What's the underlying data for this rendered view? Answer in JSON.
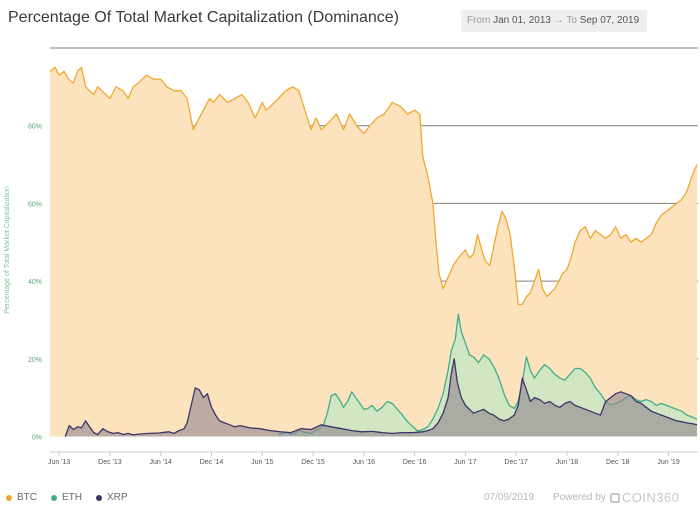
{
  "title": "Percentage Of Total Market Capitalization (Dominance)",
  "range": {
    "from_label": "From",
    "from_value": "Jan 01, 2013",
    "separator": "→",
    "to_label": "To",
    "to_value": "Sep 07, 2019"
  },
  "footer": {
    "date": "07/09/2019",
    "powered_by": "Powered by",
    "brand": "COIN360"
  },
  "chart_data": {
    "type": "area",
    "title": "Percentage Of Total Market Capitalization (Dominance)",
    "ylabel": "Percentage of Total Market Capitalization",
    "xlabel": "",
    "ylim": [
      -4,
      100
    ],
    "yticks": [
      0,
      20,
      40,
      60,
      80
    ],
    "ytick_labels": [
      "0%",
      "20%",
      "40%",
      "60%",
      "80%"
    ],
    "xlim": [
      2013.33,
      2019.71
    ],
    "xticks": [
      2013.42,
      2013.92,
      2014.42,
      2014.92,
      2015.42,
      2015.92,
      2016.42,
      2016.92,
      2017.42,
      2017.92,
      2018.42,
      2018.92,
      2019.42
    ],
    "xtick_labels": [
      "Jun '13",
      "Dec '13",
      "Jun '14",
      "Dec '14",
      "Jun '15",
      "Dec '15",
      "Jun '16",
      "Dec '16",
      "Jun '17",
      "Dec '17",
      "Jun '18",
      "Dec '18",
      "Jun '19"
    ],
    "grid": true,
    "legend_position": "bottom-left",
    "colors": {
      "BTC": "#f0a830",
      "ETH": "#3fae8a",
      "XRP": "#3b3566"
    },
    "series": [
      {
        "name": "BTC",
        "x": [
          2013.33,
          2013.38,
          2013.42,
          2013.47,
          2013.51,
          2013.56,
          2013.6,
          2013.64,
          2013.68,
          2013.72,
          2013.76,
          2013.8,
          2013.84,
          2013.88,
          2013.92,
          2013.98,
          2014.05,
          2014.1,
          2014.15,
          2014.2,
          2014.28,
          2014.35,
          2014.42,
          2014.48,
          2014.55,
          2014.62,
          2014.68,
          2014.74,
          2014.8,
          2014.86,
          2014.9,
          2014.94,
          2015.0,
          2015.08,
          2015.15,
          2015.22,
          2015.28,
          2015.35,
          2015.42,
          2015.46,
          2015.5,
          2015.58,
          2015.65,
          2015.72,
          2015.78,
          2015.84,
          2015.9,
          2015.95,
          2016.0,
          2016.08,
          2016.15,
          2016.22,
          2016.28,
          2016.35,
          2016.42,
          2016.48,
          2016.55,
          2016.62,
          2016.7,
          2016.78,
          2016.85,
          2016.92,
          2016.97,
          2017.0,
          2017.05,
          2017.1,
          2017.13,
          2017.16,
          2017.2,
          2017.25,
          2017.3,
          2017.35,
          2017.42,
          2017.46,
          2017.5,
          2017.54,
          2017.58,
          2017.62,
          2017.66,
          2017.7,
          2017.74,
          2017.78,
          2017.82,
          2017.86,
          2017.9,
          2017.94,
          2017.98,
          2018.02,
          2018.06,
          2018.1,
          2018.14,
          2018.18,
          2018.22,
          2018.26,
          2018.3,
          2018.34,
          2018.38,
          2018.42,
          2018.46,
          2018.5,
          2018.55,
          2018.6,
          2018.65,
          2018.7,
          2018.75,
          2018.8,
          2018.85,
          2018.9,
          2018.95,
          2019.0,
          2019.05,
          2019.1,
          2019.15,
          2019.2,
          2019.25,
          2019.3,
          2019.35,
          2019.4,
          2019.45,
          2019.5,
          2019.55,
          2019.6,
          2019.65,
          2019.7
        ],
        "values": [
          94,
          95,
          93,
          94,
          92,
          91,
          94,
          95,
          90,
          89,
          88,
          90,
          89,
          88,
          87,
          90,
          89,
          87,
          90,
          91,
          93,
          92,
          92,
          90,
          89,
          89,
          87,
          79,
          82,
          85,
          87,
          86,
          88,
          86,
          87,
          88,
          86,
          82,
          86,
          84,
          85,
          87,
          89,
          90,
          89,
          84,
          79,
          82,
          79,
          81,
          83,
          79,
          83,
          80,
          78,
          80,
          82,
          83,
          86,
          85,
          83,
          84,
          83,
          72,
          67,
          60,
          50,
          42,
          38,
          41,
          44,
          46,
          48,
          46,
          47,
          52,
          48,
          45,
          44,
          49,
          54,
          58,
          56,
          52,
          44,
          34,
          34,
          36,
          37,
          40,
          43,
          38,
          36,
          37,
          38,
          40,
          42,
          43,
          46,
          50,
          53,
          54,
          51,
          53,
          52,
          51,
          52,
          54,
          51,
          52,
          50,
          51,
          50,
          51,
          52,
          55,
          57,
          58,
          59,
          60,
          61,
          63,
          67,
          70
        ]
      },
      {
        "name": "ETH",
        "x": [
          2015.58,
          2015.62,
          2015.66,
          2015.7,
          2015.74,
          2015.78,
          2015.82,
          2015.86,
          2015.9,
          2015.94,
          2015.98,
          2016.02,
          2016.06,
          2016.1,
          2016.14,
          2016.18,
          2016.22,
          2016.26,
          2016.3,
          2016.34,
          2016.38,
          2016.42,
          2016.46,
          2016.5,
          2016.55,
          2016.6,
          2016.65,
          2016.7,
          2016.75,
          2016.8,
          2016.85,
          2016.9,
          2016.95,
          2017.0,
          2017.05,
          2017.1,
          2017.15,
          2017.2,
          2017.25,
          2017.28,
          2017.32,
          2017.35,
          2017.38,
          2017.42,
          2017.46,
          2017.5,
          2017.55,
          2017.6,
          2017.65,
          2017.7,
          2017.75,
          2017.8,
          2017.85,
          2017.9,
          2017.94,
          2017.98,
          2018.02,
          2018.06,
          2018.1,
          2018.15,
          2018.2,
          2018.25,
          2018.3,
          2018.35,
          2018.4,
          2018.45,
          2018.5,
          2018.55,
          2018.6,
          2018.65,
          2018.7,
          2018.75,
          2018.8,
          2018.85,
          2018.9,
          2018.95,
          2019.0,
          2019.05,
          2019.1,
          2019.15,
          2019.2,
          2019.25,
          2019.3,
          2019.35,
          2019.4,
          2019.45,
          2019.5,
          2019.55,
          2019.6,
          2019.65,
          2019.7
        ],
        "values": [
          0.4,
          0.8,
          1.1,
          0.5,
          0.8,
          1.6,
          1.2,
          1.0,
          0.8,
          1.5,
          2.0,
          2.8,
          6.0,
          10.5,
          11.0,
          9.5,
          7.5,
          9.0,
          11.5,
          10.0,
          8.5,
          7.0,
          7.2,
          8.0,
          6.5,
          7.5,
          9.0,
          8.5,
          7.0,
          5.5,
          3.8,
          2.6,
          1.4,
          1.8,
          2.5,
          4.5,
          7.2,
          11.0,
          17.0,
          22.0,
          25.0,
          31.5,
          27.0,
          24.0,
          21.0,
          20.5,
          19.0,
          21.0,
          20.0,
          18.0,
          15.0,
          11.0,
          8.0,
          7.2,
          9.0,
          14.0,
          20.5,
          17.0,
          15.0,
          17.0,
          18.5,
          17.5,
          16.0,
          15.0,
          14.5,
          16.0,
          17.5,
          17.5,
          16.5,
          15.0,
          12.5,
          11.0,
          9.0,
          8.0,
          8.5,
          9.0,
          10.0,
          10.5,
          9.5,
          9.0,
          9.5,
          9.0,
          8.0,
          8.5,
          8.0,
          7.5,
          7.0,
          6.5,
          5.5,
          5.0,
          4.5
        ]
      },
      {
        "name": "XRP",
        "x": [
          2013.48,
          2013.52,
          2013.56,
          2013.6,
          2013.64,
          2013.68,
          2013.72,
          2013.76,
          2013.8,
          2013.85,
          2013.9,
          2013.95,
          2014.0,
          2014.05,
          2014.1,
          2014.15,
          2014.2,
          2014.3,
          2014.4,
          2014.5,
          2014.55,
          2014.6,
          2014.65,
          2014.68,
          2014.72,
          2014.76,
          2014.8,
          2014.84,
          2014.88,
          2014.92,
          2014.96,
          2015.0,
          2015.05,
          2015.1,
          2015.15,
          2015.2,
          2015.3,
          2015.4,
          2015.5,
          2015.6,
          2015.7,
          2015.8,
          2015.9,
          2016.0,
          2016.1,
          2016.2,
          2016.3,
          2016.4,
          2016.5,
          2016.6,
          2016.7,
          2016.8,
          2016.9,
          2017.0,
          2017.05,
          2017.1,
          2017.15,
          2017.2,
          2017.25,
          2017.28,
          2017.31,
          2017.34,
          2017.38,
          2017.42,
          2017.46,
          2017.5,
          2017.55,
          2017.6,
          2017.65,
          2017.7,
          2017.75,
          2017.8,
          2017.85,
          2017.9,
          2017.94,
          2017.98,
          2018.02,
          2018.06,
          2018.1,
          2018.15,
          2018.2,
          2018.25,
          2018.3,
          2018.35,
          2018.4,
          2018.45,
          2018.5,
          2018.55,
          2018.6,
          2018.65,
          2018.7,
          2018.75,
          2018.8,
          2018.85,
          2018.9,
          2018.95,
          2019.0,
          2019.05,
          2019.1,
          2019.15,
          2019.2,
          2019.25,
          2019.3,
          2019.35,
          2019.4,
          2019.45,
          2019.5,
          2019.55,
          2019.6,
          2019.65,
          2019.7
        ],
        "values": [
          0,
          2.8,
          1.8,
          2.5,
          2.2,
          4.0,
          2.5,
          1.0,
          0.5,
          2.0,
          1.2,
          0.8,
          1.0,
          0.5,
          0.8,
          0.4,
          0.6,
          0.8,
          0.9,
          1.2,
          0.8,
          1.5,
          2.0,
          3.5,
          8.0,
          12.5,
          12.0,
          10.0,
          11.0,
          7.5,
          5.5,
          4.0,
          3.5,
          3.0,
          2.5,
          2.8,
          2.2,
          2.0,
          1.5,
          1.2,
          1.0,
          2.0,
          1.8,
          3.0,
          2.5,
          2.0,
          1.5,
          1.2,
          1.3,
          1.0,
          0.8,
          1.0,
          1.0,
          1.2,
          1.5,
          2.0,
          3.5,
          6.0,
          10.0,
          16.0,
          20.0,
          14.0,
          10.0,
          8.0,
          7.0,
          6.0,
          6.5,
          7.0,
          6.0,
          5.5,
          4.5,
          4.0,
          4.5,
          5.5,
          8.0,
          15.0,
          12.0,
          9.0,
          10.0,
          9.5,
          8.5,
          9.0,
          8.0,
          7.5,
          8.5,
          9.0,
          8.0,
          7.5,
          7.0,
          6.5,
          6.0,
          5.5,
          9.0,
          10.0,
          11.0,
          11.5,
          11.0,
          10.5,
          9.0,
          8.5,
          7.5,
          6.5,
          6.0,
          5.5,
          5.0,
          4.5,
          4.0,
          3.8,
          3.5,
          3.3,
          3.0
        ]
      }
    ]
  }
}
